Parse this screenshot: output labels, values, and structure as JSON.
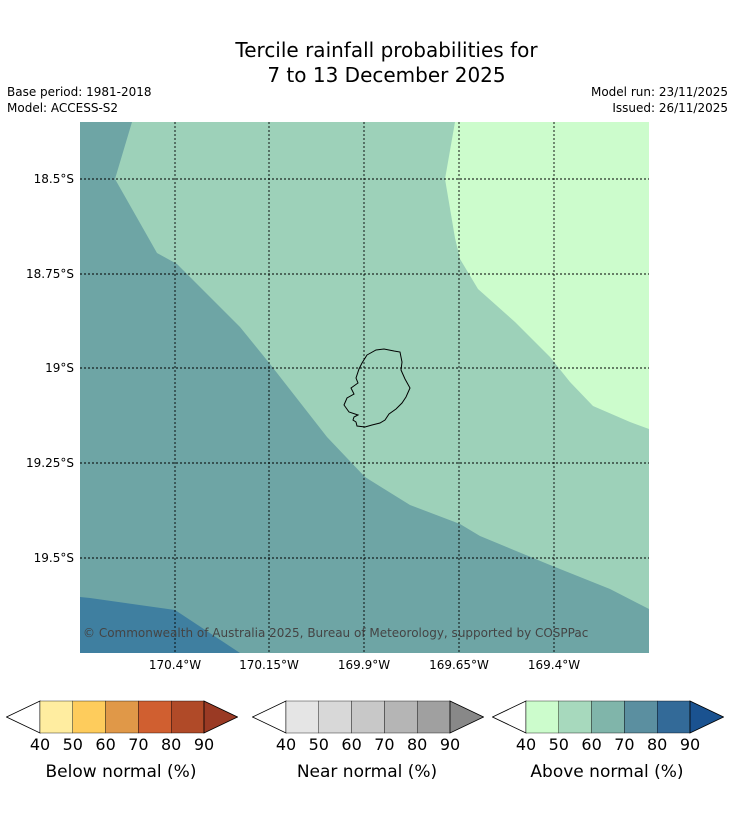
{
  "title_line1": "Tercile rainfall probabilities for",
  "title_line2": "7 to 13 December 2025",
  "meta_left": {
    "base_period": "Base period: 1981-2018",
    "model": "Model: ACCESS-S2"
  },
  "meta_right": {
    "model_run": "Model run: 23/11/2025",
    "issued": "Issued: 26/11/2025"
  },
  "map": {
    "copyright": "© Commonwealth of Australia 2025, Bureau of Meteorology, supported by COSPPac",
    "lat_labels": [
      "18.5°S",
      "18.75°S",
      "19°S",
      "19.25°S",
      "19.5°S"
    ],
    "lon_labels": [
      "170.4°W",
      "170.15°W",
      "169.9°W",
      "169.65°W",
      "169.4°W"
    ],
    "zone_colors": {
      "above_50": "#9dd1b9",
      "above_40": "#ccfccc",
      "above_60": "#6ea5a5",
      "above_70": "#3f7fa0"
    }
  },
  "colorbars": [
    {
      "label": "Below normal (%)",
      "ticks": [
        "40",
        "50",
        "60",
        "70",
        "80",
        "90"
      ],
      "colors": [
        "#ffffff",
        "#ffeda0",
        "#fecc5c",
        "#e09848",
        "#d05f30",
        "#b04a28",
        "#9a3a24"
      ]
    },
    {
      "label": "Near normal (%)",
      "ticks": [
        "40",
        "50",
        "60",
        "70",
        "80",
        "90"
      ],
      "colors": [
        "#ffffff",
        "#e5e5e5",
        "#d8d8d8",
        "#c8c8c8",
        "#b5b5b5",
        "#a0a0a0",
        "#888888"
      ]
    },
    {
      "label": "Above normal (%)",
      "ticks": [
        "40",
        "50",
        "60",
        "70",
        "80",
        "90"
      ],
      "colors": [
        "#ffffff",
        "#ccfccc",
        "#a7d9bd",
        "#80b5aa",
        "#5b8fa0",
        "#336a98",
        "#1a5290"
      ]
    }
  ]
}
